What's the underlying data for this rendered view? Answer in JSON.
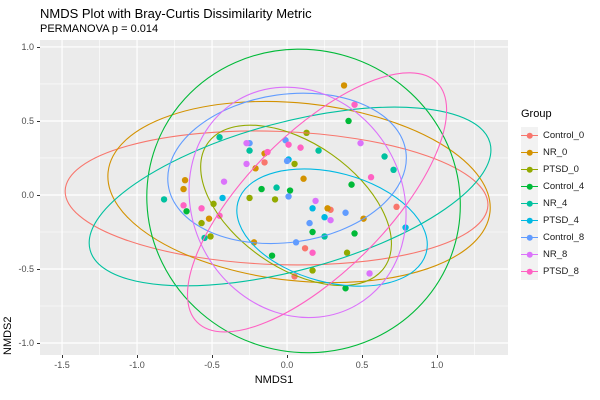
{
  "title": "NMDS Plot with Bray-Curtis Dissimilarity Metric",
  "subtitle": "PERMANOVA p = 0.014",
  "chart_data": {
    "type": "scatter",
    "title": "NMDS Plot with Bray-Curtis Dissimilarity Metric",
    "subtitle": "PERMANOVA p = 0.014",
    "xlabel": "NMDS1",
    "ylabel": "NMDS2",
    "legend_title": "Group",
    "legend_position": "right",
    "grid": true,
    "panel_bg": "#EBEBEB",
    "grid_color": "#FFFFFF",
    "tick_text_color": "#4D4D4D",
    "xlim": [
      -1.647,
      1.473
    ],
    "ylim": [
      -1.081,
      1.047
    ],
    "x_tick_values": [
      -1.5,
      -1.0,
      -0.5,
      0.0,
      0.5,
      1.0
    ],
    "x_tick_labels": [
      "-1.5",
      "-1.0",
      "-0.5",
      "0.0",
      "0.5",
      "1.0"
    ],
    "y_tick_values": [
      1.0,
      0.5,
      0.0,
      -0.5,
      -1.0
    ],
    "y_tick_labels": [
      "1.0",
      "0.5",
      "0.0",
      "-0.5",
      "-1.0"
    ],
    "x_minor_ticks": [
      -1.25,
      -0.75,
      -0.25,
      0.25,
      0.75,
      1.25
    ],
    "y_minor_ticks": [
      0.75,
      0.25,
      -0.25,
      -0.75
    ],
    "point_radius": 3.2,
    "ellipse_stroke_width": 1.1,
    "groups": [
      {
        "name": "Control_0",
        "color": "#F8766D",
        "ellipse": {
          "cx": -0.07,
          "cy": -0.02,
          "rx": 1.41,
          "ry": 0.45,
          "angle": 2
        },
        "points": [
          [
            -0.15,
            0.22
          ],
          [
            0.73,
            -0.08
          ],
          [
            0.29,
            -0.1
          ],
          [
            0.12,
            -0.36
          ],
          [
            0.05,
            -0.55
          ]
        ]
      },
      {
        "name": "NR_0",
        "color": "#D39200",
        "ellipse": {
          "cx": 0.08,
          "cy": 0.02,
          "rx": 1.28,
          "ry": 0.6,
          "angle": 6
        },
        "points": [
          [
            0.38,
            0.74
          ],
          [
            -0.15,
            0.28
          ],
          [
            -0.21,
            0.18
          ],
          [
            0.11,
            0.11
          ],
          [
            -0.68,
            0.1
          ],
          [
            -0.69,
            0.04
          ],
          [
            0.27,
            -0.09
          ],
          [
            -0.52,
            -0.16
          ],
          [
            -0.22,
            -0.32
          ],
          [
            0.51,
            -0.16
          ]
        ]
      },
      {
        "name": "PTSD_0",
        "color": "#93AA00",
        "ellipse": {
          "cx": 0.06,
          "cy": -0.07,
          "rx": 0.72,
          "ry": 0.42,
          "angle": 35
        },
        "points": [
          [
            0.13,
            0.42
          ],
          [
            0.05,
            0.21
          ],
          [
            -0.08,
            -0.03
          ],
          [
            -0.25,
            -0.02
          ],
          [
            -0.49,
            -0.06
          ],
          [
            -0.57,
            -0.19
          ],
          [
            -0.51,
            -0.28
          ],
          [
            0.4,
            -0.39
          ],
          [
            0.17,
            -0.51
          ]
        ]
      },
      {
        "name": "Control_4",
        "color": "#00BA38",
        "ellipse": {
          "cx": 0.11,
          "cy": -0.04,
          "rx": 1.05,
          "ry": 1.02,
          "angle": 20
        },
        "points": [
          [
            0.41,
            0.5
          ],
          [
            0.43,
            0.07
          ],
          [
            -0.17,
            0.04
          ],
          [
            0.02,
            0.03
          ],
          [
            -0.67,
            -0.11
          ],
          [
            -0.1,
            -0.41
          ],
          [
            0.17,
            -0.25
          ],
          [
            0.45,
            -0.26
          ],
          [
            0.39,
            -0.63
          ]
        ]
      },
      {
        "name": "NR_4",
        "color": "#00C19F",
        "ellipse": {
          "cx": 0.02,
          "cy": -0.01,
          "rx": 1.38,
          "ry": 0.5,
          "angle": -15
        },
        "points": [
          [
            -0.45,
            0.39
          ],
          [
            -0.25,
            0.3
          ],
          [
            0.21,
            0.3
          ],
          [
            0.65,
            0.26
          ],
          [
            0.71,
            0.17
          ],
          [
            -0.07,
            0.05
          ],
          [
            -0.82,
            -0.03
          ],
          [
            -0.55,
            -0.29
          ],
          [
            0.25,
            -0.28
          ]
        ]
      },
      {
        "name": "PTSD_4",
        "color": "#00B9E3",
        "ellipse": {
          "cx": 0.3,
          "cy": -0.22,
          "rx": 0.65,
          "ry": 0.37,
          "angle": 15
        },
        "points": [
          [
            0.79,
            -0.22
          ],
          [
            0.17,
            -0.09
          ],
          [
            0.25,
            -0.15
          ],
          [
            0.01,
            0.24
          ],
          [
            -0.43,
            -0.02
          ]
        ]
      },
      {
        "name": "Control_8",
        "color": "#619CFF",
        "ellipse": {
          "cx": 0.0,
          "cy": 0.18,
          "rx": 0.8,
          "ry": 0.5,
          "angle": -8
        },
        "points": [
          [
            -0.25,
            0.35
          ],
          [
            -0.01,
            0.37
          ],
          [
            0.0,
            0.23
          ],
          [
            0.01,
            -0.01
          ],
          [
            0.15,
            -0.19
          ],
          [
            0.39,
            -0.12
          ],
          [
            0.06,
            -0.32
          ]
        ]
      },
      {
        "name": "NR_8",
        "color": "#DB72FB",
        "ellipse": {
          "cx": 0.07,
          "cy": -0.05,
          "rx": 0.7,
          "ry": 0.8,
          "angle": -30
        },
        "points": [
          [
            -0.27,
            0.35
          ],
          [
            -0.27,
            0.21
          ],
          [
            -0.42,
            0.09
          ],
          [
            0.49,
            0.35
          ],
          [
            0.19,
            -0.04
          ],
          [
            0.29,
            -0.17
          ],
          [
            0.55,
            -0.53
          ]
        ]
      },
      {
        "name": "PTSD_8",
        "color": "#FF61C3",
        "ellipse": {
          "cx": 0.2,
          "cy": -0.05,
          "rx": 1.13,
          "ry": 0.47,
          "angle": -45
        },
        "points": [
          [
            0.45,
            0.61
          ],
          [
            0.01,
            0.34
          ],
          [
            0.09,
            0.32
          ],
          [
            -0.13,
            0.29
          ],
          [
            0.56,
            0.12
          ],
          [
            -0.69,
            -0.07
          ],
          [
            -0.57,
            -0.09
          ],
          [
            -0.45,
            -0.14
          ],
          [
            0.17,
            -0.39
          ]
        ]
      }
    ]
  }
}
